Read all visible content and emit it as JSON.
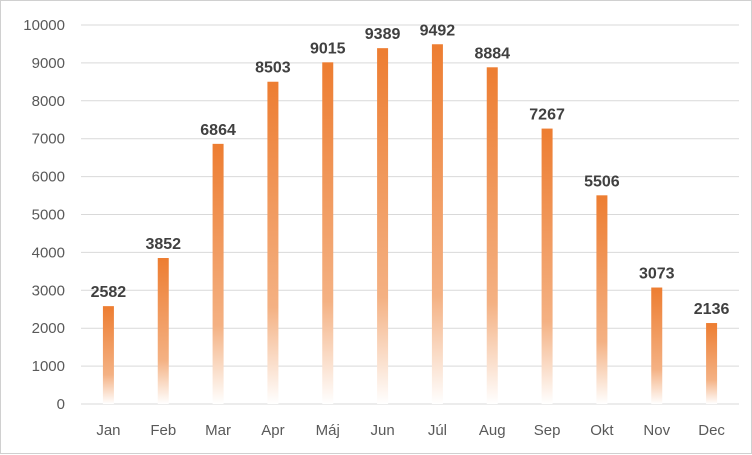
{
  "chart_data": {
    "type": "bar",
    "title": "",
    "xlabel": "",
    "ylabel": "",
    "categories": [
      "Jan",
      "Feb",
      "Mar",
      "Apr",
      "Máj",
      "Jun",
      "Júl",
      "Aug",
      "Sep",
      "Okt",
      "Nov",
      "Dec"
    ],
    "values": [
      2582,
      3852,
      6864,
      8503,
      9015,
      9389,
      9492,
      8884,
      7267,
      5506,
      3073,
      2136
    ],
    "ylim": [
      0,
      10000
    ],
    "yticks": [
      0,
      1000,
      2000,
      3000,
      4000,
      5000,
      6000,
      7000,
      8000,
      9000,
      10000
    ],
    "grid": true,
    "legend": "none",
    "data_labels": true,
    "colors": {
      "bar_top": "#ED7D31",
      "bar_bottom": "#FFFFFF",
      "grid": "#D9D9D9",
      "text": "#595959"
    }
  }
}
